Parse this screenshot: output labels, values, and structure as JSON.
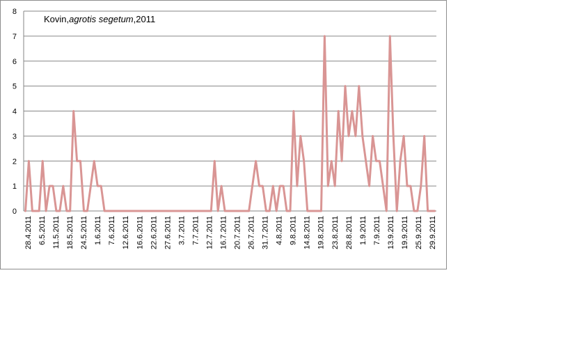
{
  "chart_data": {
    "type": "line",
    "title_parts": [
      "Kovin,",
      "agrotis segetum",
      ",2011"
    ],
    "xlabel": "",
    "ylabel": "",
    "ylim": [
      0,
      8
    ],
    "yticks": [
      0,
      1,
      2,
      3,
      4,
      5,
      6,
      7,
      8
    ],
    "grid": true,
    "legend": "none",
    "line_color": "#d99594",
    "x_tick_labels": [
      "28.4.2011",
      "6.5.2011",
      "11.5.2011",
      "18.5.2011",
      "24.5.2011",
      "1.6.2011",
      "7.6.2011",
      "12.6.2011",
      "16.6.2011",
      "22.6.2011",
      "27.6.2011",
      "3.7.2011",
      "7.7.2011",
      "12.7.2011",
      "16.7.2011",
      "20.7.2011",
      "26.7.2011",
      "31.7.2011",
      "4.8.2011",
      "9.8.2011",
      "14.8.2011",
      "19.8.2011",
      "23.8.2011",
      "28.8.2011",
      "1.9.2011",
      "7.9.2011",
      "13.9.2011",
      "19.9.2011",
      "25.9.2011",
      "29.9.2011"
    ],
    "values": [
      0,
      2,
      0,
      0,
      0,
      2,
      0,
      1,
      1,
      0,
      0,
      1,
      0,
      0,
      4,
      2,
      2,
      0,
      0,
      1,
      2,
      1,
      1,
      0,
      0,
      0,
      0,
      0,
      0,
      0,
      0,
      0,
      0,
      0,
      0,
      0,
      0,
      0,
      0,
      0,
      0,
      0,
      0,
      0,
      0,
      0,
      0,
      0,
      0,
      0,
      0,
      0,
      0,
      0,
      0,
      2,
      0,
      1,
      0,
      0,
      0,
      0,
      0,
      0,
      0,
      0,
      1,
      2,
      1,
      1,
      0,
      0,
      1,
      0,
      1,
      1,
      0,
      0,
      4,
      1,
      3,
      2,
      0,
      0,
      0,
      0,
      0,
      7,
      1,
      2,
      1,
      4,
      2,
      5,
      3,
      4,
      3,
      5,
      3,
      2,
      1,
      3,
      2,
      2,
      1,
      0,
      7,
      3,
      0,
      2,
      3,
      1,
      1,
      0,
      0,
      1,
      3,
      0,
      0,
      0
    ]
  }
}
